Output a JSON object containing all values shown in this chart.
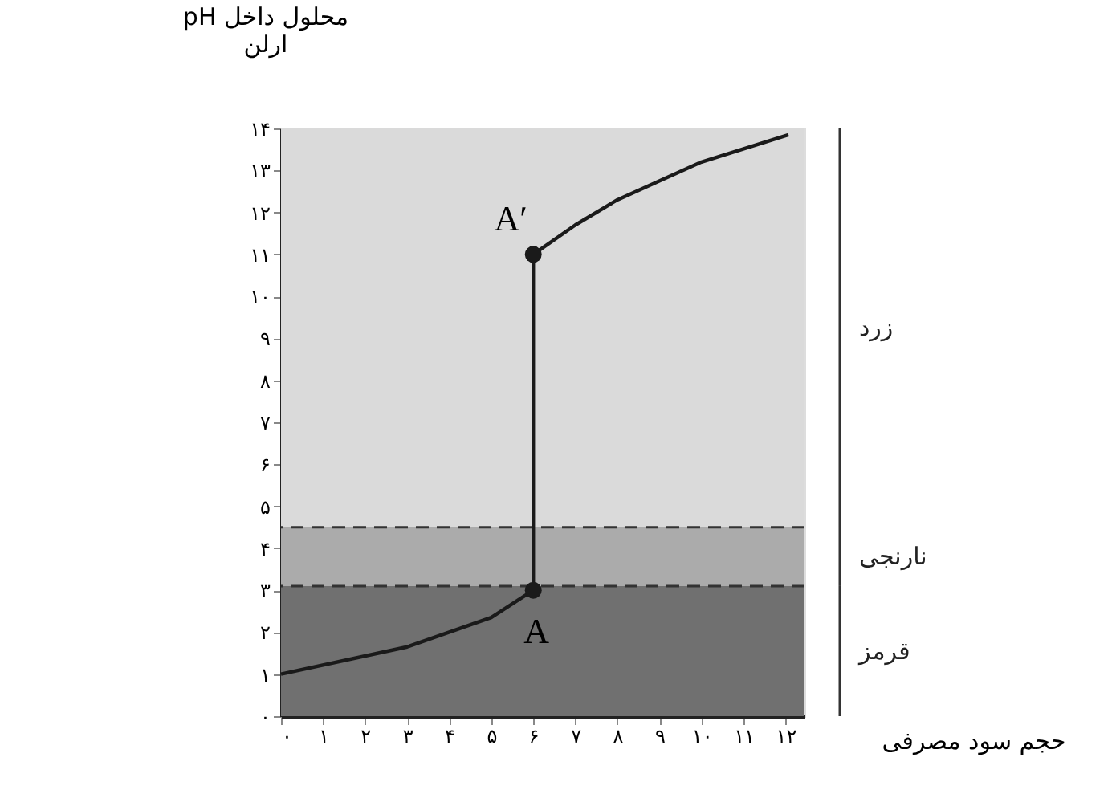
{
  "chart_data": {
    "type": "line",
    "xlabel": "حجم سود مصرفی",
    "ylabel": "pH محلول داخل\nارلن",
    "x": [
      0,
      3,
      5,
      6,
      6,
      7,
      8,
      10,
      12.07
    ],
    "series": [
      {
        "color": "#1a1a1a",
        "values": [
          1,
          1.65,
          2.35,
          3,
          11,
          11.7,
          12.3,
          13.2,
          13.85
        ],
        "marker": "none"
      },
      {
        "type": "scatter",
        "color": "#1a1a1a",
        "x": [
          6,
          6
        ],
        "values": [
          3,
          11
        ],
        "marker": "circle"
      }
    ],
    "xlim": [
      0,
      12.45
    ],
    "ylim": [
      0,
      14
    ],
    "xticks": [
      {
        "value": 0,
        "label": "۰"
      },
      {
        "value": 1,
        "label": "۱"
      },
      {
        "value": 2,
        "label": "۲"
      },
      {
        "value": 3,
        "label": "۳"
      },
      {
        "value": 4,
        "label": "۴"
      },
      {
        "value": 5,
        "label": "۵"
      },
      {
        "value": 6,
        "label": "۶"
      },
      {
        "value": 7,
        "label": "۷"
      },
      {
        "value": 8,
        "label": "۸"
      },
      {
        "value": 9,
        "label": "۹"
      },
      {
        "value": 10,
        "label": "۱۰"
      },
      {
        "value": 11,
        "label": "۱۱"
      },
      {
        "value": 12,
        "label": "۱۲"
      }
    ],
    "yticks": [
      {
        "value": 0,
        "label": "۰"
      },
      {
        "value": 1,
        "label": "۱"
      },
      {
        "value": 2,
        "label": "۲"
      },
      {
        "value": 3,
        "label": "۳"
      },
      {
        "value": 4,
        "label": "۴"
      },
      {
        "value": 5,
        "label": "۵"
      },
      {
        "value": 6,
        "label": "۶"
      },
      {
        "value": 7,
        "label": "۷"
      },
      {
        "value": 8,
        "label": "۸"
      },
      {
        "value": 9,
        "label": "۹"
      },
      {
        "value": 10,
        "label": "۱۰"
      },
      {
        "value": 11,
        "label": "۱۱"
      },
      {
        "value": 12,
        "label": "۱۲"
      },
      {
        "value": 13,
        "label": "۱۳"
      },
      {
        "value": 14,
        "label": "۱۴"
      }
    ],
    "bands": [
      {
        "axis": "y",
        "from": 0,
        "to": 3.1,
        "label": "قرمز",
        "color": "#707070"
      },
      {
        "axis": "y",
        "from": 3.1,
        "to": 4.5,
        "label": "نارنجی",
        "color": "#ababab"
      },
      {
        "axis": "y",
        "from": 4.5,
        "to": 14,
        "label": "زرد",
        "color": "#dadada"
      }
    ],
    "ref_lines": [
      {
        "axis": "y",
        "value": 3.1,
        "line_style": "dashed",
        "color": "#333333"
      },
      {
        "axis": "y",
        "value": 4.5,
        "line_style": "dashed",
        "color": "#333333"
      }
    ],
    "annotations": [
      {
        "text": "A",
        "x": 6,
        "y": 3
      },
      {
        "text": "A′",
        "x": 6,
        "y": 11
      }
    ],
    "grid": false
  }
}
